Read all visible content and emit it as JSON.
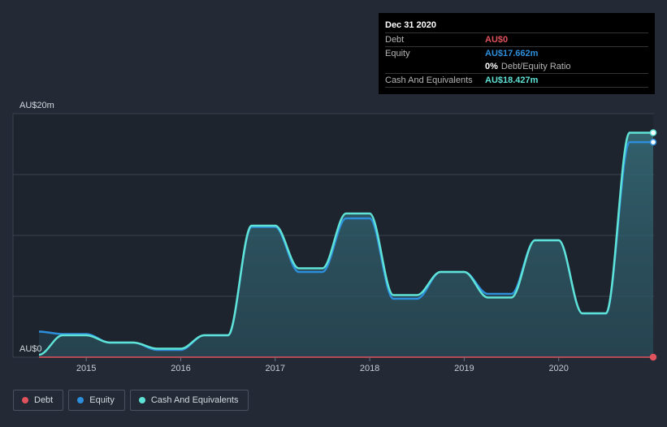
{
  "tooltip": {
    "date": "Dec 31 2020",
    "debt_label": "Debt",
    "debt_value": "AU$0",
    "equity_label": "Equity",
    "equity_value": "AU$17.662m",
    "ratio_value": "0%",
    "ratio_label": "Debt/Equity Ratio",
    "cash_label": "Cash And Equivalents",
    "cash_value": "AU$18.427m"
  },
  "colors": {
    "background": "#232a36",
    "debt": "#e0525c",
    "equity": "#2d8fdc",
    "cash": "#5fe3d6"
  },
  "legend": [
    {
      "label": "Debt",
      "color": "#e0525c"
    },
    {
      "label": "Equity",
      "color": "#2d8fdc"
    },
    {
      "label": "Cash And Equivalents",
      "color": "#5fe3d6"
    }
  ],
  "chart_data": {
    "type": "area",
    "title": "",
    "xlabel": "",
    "ylabel": "",
    "ylim": [
      0,
      20
    ],
    "xlim": [
      2014.5,
      2021.0
    ],
    "y_ticks": [
      {
        "value": 0,
        "label": "AU$0"
      },
      {
        "value": 20,
        "label": "AU$20m"
      }
    ],
    "x_ticks": [
      {
        "value": 2015,
        "label": "2015"
      },
      {
        "value": 2016,
        "label": "2016"
      },
      {
        "value": 2017,
        "label": "2017"
      },
      {
        "value": 2018,
        "label": "2018"
      },
      {
        "value": 2019,
        "label": "2019"
      },
      {
        "value": 2020,
        "label": "2020"
      }
    ],
    "series": [
      {
        "name": "Debt",
        "points": [
          [
            2014.5,
            0
          ],
          [
            2021.0,
            0
          ]
        ]
      },
      {
        "name": "Equity",
        "points": [
          [
            2014.5,
            2.1
          ],
          [
            2014.75,
            1.9
          ],
          [
            2015.0,
            1.9
          ],
          [
            2015.25,
            1.2
          ],
          [
            2015.5,
            1.2
          ],
          [
            2015.75,
            0.6
          ],
          [
            2016.0,
            0.6
          ],
          [
            2016.25,
            1.8
          ],
          [
            2016.5,
            1.8
          ],
          [
            2016.75,
            10.7
          ],
          [
            2017.0,
            10.7
          ],
          [
            2017.25,
            7.0
          ],
          [
            2017.5,
            7.0
          ],
          [
            2017.75,
            11.4
          ],
          [
            2018.0,
            11.4
          ],
          [
            2018.25,
            4.8
          ],
          [
            2018.5,
            4.8
          ],
          [
            2018.75,
            7.0
          ],
          [
            2019.0,
            7.0
          ],
          [
            2019.25,
            5.2
          ],
          [
            2019.5,
            5.2
          ],
          [
            2019.75,
            9.6
          ],
          [
            2020.0,
            9.6
          ],
          [
            2020.25,
            3.6
          ],
          [
            2020.5,
            3.6
          ],
          [
            2020.75,
            17.66
          ],
          [
            2021.0,
            17.66
          ]
        ]
      },
      {
        "name": "Cash And Equivalents",
        "points": [
          [
            2014.5,
            0.2
          ],
          [
            2014.75,
            1.8
          ],
          [
            2015.0,
            1.8
          ],
          [
            2015.25,
            1.2
          ],
          [
            2015.5,
            1.2
          ],
          [
            2015.75,
            0.7
          ],
          [
            2016.0,
            0.7
          ],
          [
            2016.25,
            1.8
          ],
          [
            2016.5,
            1.8
          ],
          [
            2016.75,
            10.8
          ],
          [
            2017.0,
            10.8
          ],
          [
            2017.25,
            7.3
          ],
          [
            2017.5,
            7.3
          ],
          [
            2017.75,
            11.8
          ],
          [
            2018.0,
            11.8
          ],
          [
            2018.25,
            5.1
          ],
          [
            2018.5,
            5.1
          ],
          [
            2018.75,
            7.0
          ],
          [
            2019.0,
            7.0
          ],
          [
            2019.25,
            4.9
          ],
          [
            2019.5,
            4.9
          ],
          [
            2019.75,
            9.6
          ],
          [
            2020.0,
            9.6
          ],
          [
            2020.25,
            3.6
          ],
          [
            2020.5,
            3.6
          ],
          [
            2020.75,
            18.43
          ],
          [
            2021.0,
            18.43
          ]
        ]
      }
    ]
  }
}
